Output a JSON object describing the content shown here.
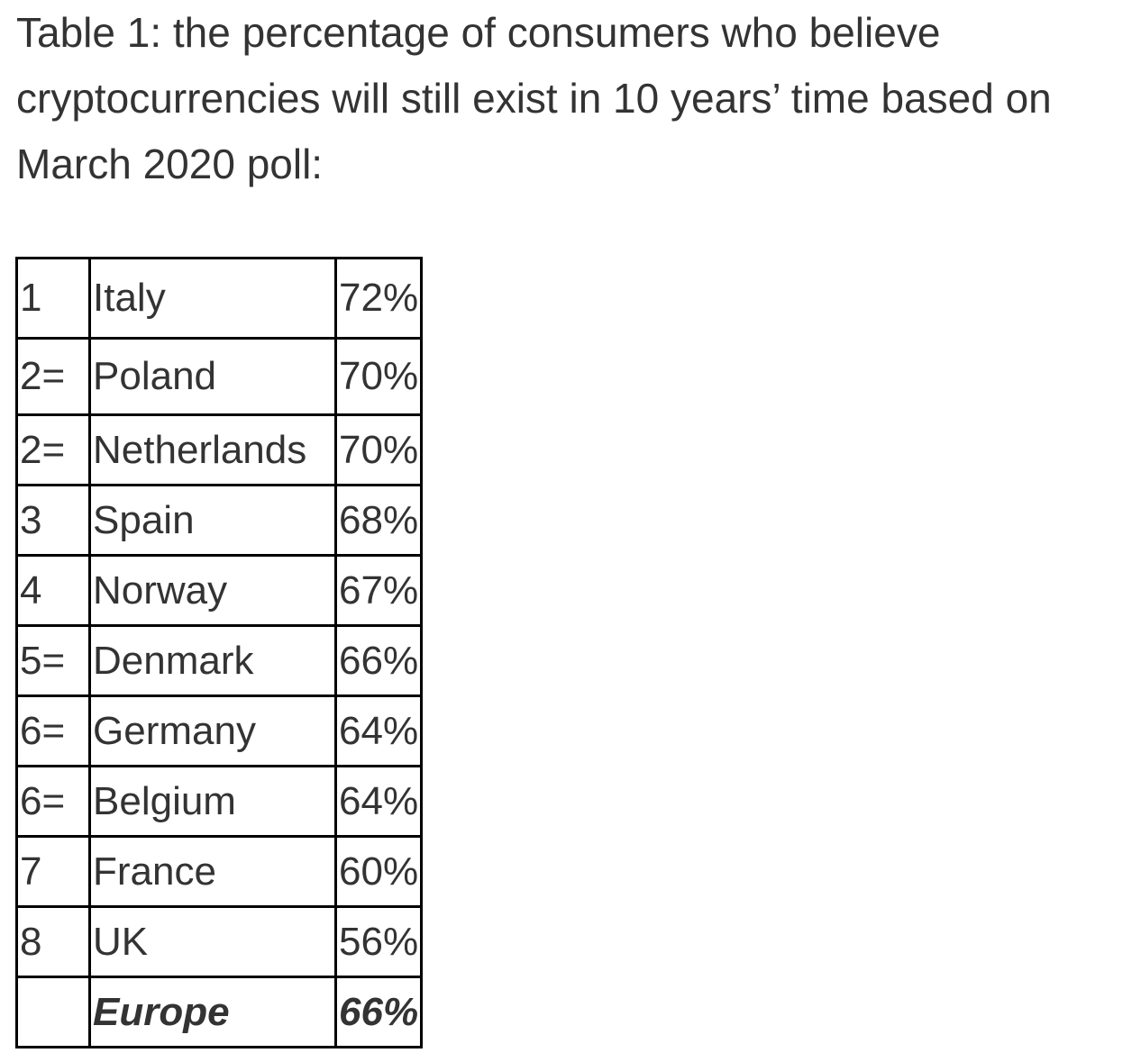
{
  "caption": "Table 1: the percentage of consumers who believe cryptocurrencies will still exist in 10 years’ time based on March 2020 poll:",
  "table": {
    "rows": [
      {
        "rank": "1",
        "country": "Italy",
        "pct": "72%"
      },
      {
        "rank": "2=",
        "country": "Poland",
        "pct": "70%"
      },
      {
        "rank": "2=",
        "country": "Netherlands",
        "pct": "70%"
      },
      {
        "rank": "3",
        "country": "Spain",
        "pct": "68%"
      },
      {
        "rank": "4",
        "country": "Norway",
        "pct": "67%"
      },
      {
        "rank": "5=",
        "country": "Denmark",
        "pct": "66%"
      },
      {
        "rank": "6=",
        "country": "Germany",
        "pct": "64%"
      },
      {
        "rank": "6=",
        "country": "Belgium",
        "pct": "64%"
      },
      {
        "rank": "7",
        "country": "France",
        "pct": "60%"
      },
      {
        "rank": "8",
        "country": "UK",
        "pct": "56%"
      }
    ],
    "total": {
      "rank": "",
      "country": "Europe",
      "pct": "66%"
    }
  }
}
